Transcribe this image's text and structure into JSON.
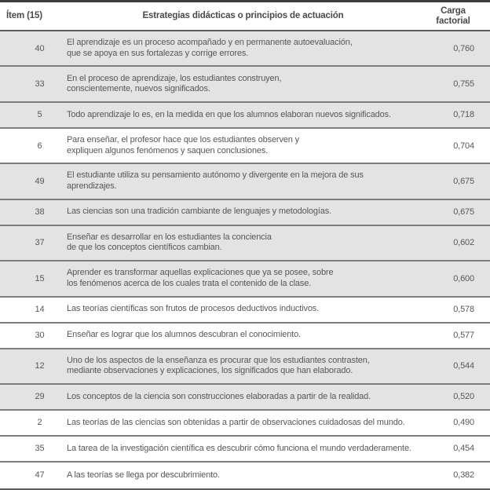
{
  "table": {
    "columns": {
      "item": "Ítem (15)",
      "strategy": "Estrategias didácticas o principios de actuación",
      "load": "Carga factorial"
    },
    "rows": [
      {
        "item": "40",
        "text": "El aprendizaje es un proceso acompañado y en permanente autoevaluación,\nque se apoya en sus fortalezas y corrige errores.",
        "load": "0,760",
        "shaded": true
      },
      {
        "item": "33",
        "text": "En el proceso de aprendizaje, los estudiantes construyen,\nconscientemente, nuevos significados.",
        "load": "0,755",
        "shaded": true
      },
      {
        "item": "5",
        "text": "Todo aprendizaje lo es, en la medida en que los alumnos elaboran nuevos significados.",
        "load": "0,718",
        "shaded": true
      },
      {
        "item": "6",
        "text": "Para enseñar, el profesor hace que los estudiantes observen y\nexpliquen algunos fenómenos y saquen conclusiones.",
        "load": "0,704",
        "shaded": false
      },
      {
        "item": "49",
        "text": "El estudiante utiliza su pensamiento autónomo y divergente en la mejora de sus aprendizajes.",
        "load": "0,675",
        "shaded": true
      },
      {
        "item": "38",
        "text": "Las ciencias son una tradición cambiante de lenguajes y metodologías.",
        "load": "0,675",
        "shaded": true
      },
      {
        "item": "37",
        "text": "Enseñar es desarrollar en los estudiantes la conciencia\nde que los conceptos científicos cambian.",
        "load": "0,602",
        "shaded": true
      },
      {
        "item": "15",
        "text": "Aprender es transformar aquellas explicaciones que ya se posee, sobre\nlos fenómenos acerca de los cuales trata el contenido de la clase.",
        "load": "0,600",
        "shaded": true
      },
      {
        "item": "14",
        "text": "Las teorías científicas son frutos de procesos deductivos inductivos.",
        "load": "0,578",
        "shaded": false
      },
      {
        "item": "30",
        "text": "Enseñar es lograr que los alumnos descubran el conocimiento.",
        "load": "0,577",
        "shaded": false
      },
      {
        "item": "12",
        "text": "Uno de los aspectos de la enseñanza es procurar que los estudiantes contrasten,\nmediante observaciones y explicaciones, los significados que han elaborado.",
        "load": "0,544",
        "shaded": true
      },
      {
        "item": "29",
        "text": "Los conceptos de la ciencia son construcciones elaboradas a partir de la realidad.",
        "load": "0,520",
        "shaded": true
      },
      {
        "item": "2",
        "text": "Las teorías de las ciencias son obtenidas a partir de observaciones cuidadosas del mundo.",
        "load": "0,490",
        "shaded": false
      },
      {
        "item": "35",
        "text": "La tarea de la investigación científica es descubrir cómo funciona el mundo verdaderamente.",
        "load": "0,454",
        "shaded": false
      },
      {
        "item": "47",
        "text": "A las teorías se llega por descubrimiento.",
        "load": "0,382",
        "shaded": false
      }
    ],
    "colors": {
      "row_shade": "#e3e3e3",
      "row_plain": "#ffffff",
      "text": "#57575a",
      "header_text": "#4a4a4d",
      "border_top": "#3c3c3c",
      "border_row": "#7d7d7d",
      "border_header": "#5c5c5c"
    }
  }
}
